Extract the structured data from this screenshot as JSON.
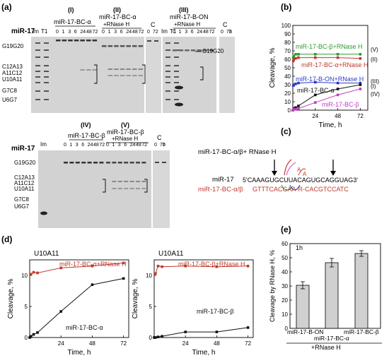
{
  "panels": {
    "a": {
      "letter": "(a)",
      "row_label": "miR-17",
      "lane_labels": [
        "Im",
        "T1"
      ],
      "groups": [
        {
          "roman": "(I)",
          "name": "miR-17-BC-α",
          "times": [
            "0",
            "1",
            "3",
            "6",
            "24",
            "48",
            "72"
          ]
        },
        {
          "roman": "(II)",
          "name": "miR-17-BC-α",
          "name2": "+RNase H",
          "times": [
            "0",
            "1",
            "3",
            "6",
            "24",
            "48",
            "72"
          ]
        },
        {
          "roman": "(III)",
          "name": "miR-17-B-ON",
          "name2": "+RNase H",
          "times": [
            "0",
            "1",
            "3",
            "6",
            "24",
            "48",
            "72"
          ]
        }
      ],
      "control_label": "C",
      "control_times": [
        "0",
        "72"
      ],
      "hours_label": "h",
      "markers": [
        "G19G20",
        "C12A13",
        "A11C12",
        "U10A11",
        "G7C8",
        "U6G7"
      ],
      "right_marker": "G19G20"
    },
    "a2": {
      "row_label": "miR-17",
      "lane_label": "Im",
      "groups": [
        {
          "roman": "(IV)",
          "name": "miR-17-BC-β",
          "times": [
            "0",
            "1",
            "3",
            "6",
            "24",
            "48",
            "72"
          ]
        },
        {
          "roman": "(V)",
          "name": "miR-17-BC-β",
          "name2": "+RNase H",
          "times": [
            "0",
            "1",
            "3",
            "6",
            "24",
            "48",
            "72"
          ]
        }
      ],
      "control_label": "C",
      "control_times": [
        "0",
        "72"
      ],
      "hours_label": "h",
      "markers": [
        "G19G20",
        "C12A13",
        "A11C12",
        "U10A11",
        "G7C8",
        "U6G7"
      ]
    },
    "c": {
      "letter": "(c)",
      "title": "miR-17-BC-α/β+ RNase H",
      "row1_label": "miR-17",
      "row1_seq": "5'CAAAGUGCUUACAGUGCAGGUAG3'",
      "row2_label": "miR-17-BC-α/β",
      "row2_seq": "GTTTCACGAA-R-CACGTCCATC"
    },
    "e": {
      "letter": "(e)",
      "inset": "1h",
      "footer": "+RNase H"
    }
  },
  "chart_data": [
    {
      "id": "b",
      "letter": "(b)",
      "type": "line",
      "xlabel": "Time, h",
      "ylabel": "Cleavage, %",
      "xlim": [
        0,
        80
      ],
      "ylim": [
        0,
        100
      ],
      "xticks": [
        24,
        48,
        72
      ],
      "yticks": [
        0,
        10,
        20,
        30,
        40,
        50,
        60,
        70,
        80,
        90,
        100
      ],
      "series": [
        {
          "name": "miR-17-BC-β+RNase H",
          "tag": "(V)",
          "color": "#2e9a2e",
          "x": [
            0.5,
            1,
            3,
            6,
            24,
            48,
            72
          ],
          "y": [
            62,
            64,
            66,
            66,
            66,
            66,
            66
          ]
        },
        {
          "name": "miR-17-BC-α+RNase H",
          "tag": "(II)",
          "color": "#c0392b",
          "x": [
            0.5,
            1,
            3,
            6,
            24,
            48,
            72
          ],
          "y": [
            58,
            60,
            61,
            62,
            62,
            62,
            61
          ]
        },
        {
          "name": "miR-17-B-ON+RNase H",
          "tag": "(III)",
          "color": "#2d3ac4",
          "x": [
            0.5,
            1,
            3,
            6,
            24,
            48,
            72
          ],
          "y": [
            29,
            30,
            31,
            32,
            33,
            32,
            32
          ]
        },
        {
          "name": "miR-17-BC-α",
          "tag": "(I)",
          "color": "#111111",
          "x": [
            0,
            1,
            3,
            6,
            24,
            48,
            72
          ],
          "y": [
            0,
            2,
            3,
            5,
            18,
            25,
            30
          ]
        },
        {
          "name": "miR-17-BC-β",
          "tag": "(IV)",
          "color": "#c13fc1",
          "x": [
            0,
            1,
            3,
            6,
            24,
            48,
            72
          ],
          "y": [
            0,
            1,
            1,
            2,
            9,
            18,
            25
          ]
        }
      ]
    },
    {
      "id": "d1",
      "letter": "(d)",
      "type": "line",
      "title": "U10A11",
      "xlabel": "Time, h",
      "ylabel": "Cleavage, %",
      "xlim": [
        0,
        76
      ],
      "ylim": [
        0,
        12.5
      ],
      "xticks": [
        24,
        48,
        72
      ],
      "yticks": [
        0,
        5,
        10
      ],
      "series": [
        {
          "name": "miR-17-BC-α+RNase H",
          "color": "#c0392b",
          "x": [
            1,
            3,
            6,
            24,
            48,
            72
          ],
          "y": [
            10.2,
            10.5,
            10.4,
            11.2,
            11.5,
            12.0
          ]
        },
        {
          "name": "miR-17-BC-α",
          "color": "#111111",
          "x": [
            0,
            1,
            3,
            6,
            24,
            48,
            72
          ],
          "y": [
            0,
            0.2,
            0.5,
            0.8,
            4.2,
            8.5,
            9.5
          ]
        }
      ]
    },
    {
      "id": "d2",
      "type": "line",
      "title": "U10A11",
      "xlabel": "Time, h",
      "ylabel": "Cleavage, %",
      "xlim": [
        0,
        76
      ],
      "ylim": [
        0,
        12.5
      ],
      "xticks": [
        24,
        48,
        72
      ],
      "yticks": [
        0,
        5,
        10
      ],
      "series": [
        {
          "name": "miR-17-BC-β+RNase H",
          "color": "#c0392b",
          "x": [
            1,
            3,
            6,
            24,
            48,
            72
          ],
          "y": [
            10.3,
            11.5,
            11.4,
            11.5,
            11.4,
            11.5
          ]
        },
        {
          "name": "miR-17-BC-β",
          "color": "#111111",
          "x": [
            0,
            1,
            3,
            6,
            24,
            48,
            72
          ],
          "y": [
            0,
            0,
            0.1,
            0.2,
            0.9,
            0.9,
            1.6
          ]
        }
      ]
    },
    {
      "id": "e",
      "type": "bar",
      "ylabel": "Cleavage by RNase H, %",
      "categories": [
        "miR-17-B-ON",
        "miR-17-BC-α",
        "miR-17-BC-β"
      ],
      "values": [
        30.5,
        46.5,
        53
      ],
      "errors": [
        2.5,
        3,
        2
      ],
      "ylim": [
        0,
        60
      ],
      "yticks": [
        0,
        10,
        20,
        30,
        40,
        50,
        60
      ]
    }
  ]
}
